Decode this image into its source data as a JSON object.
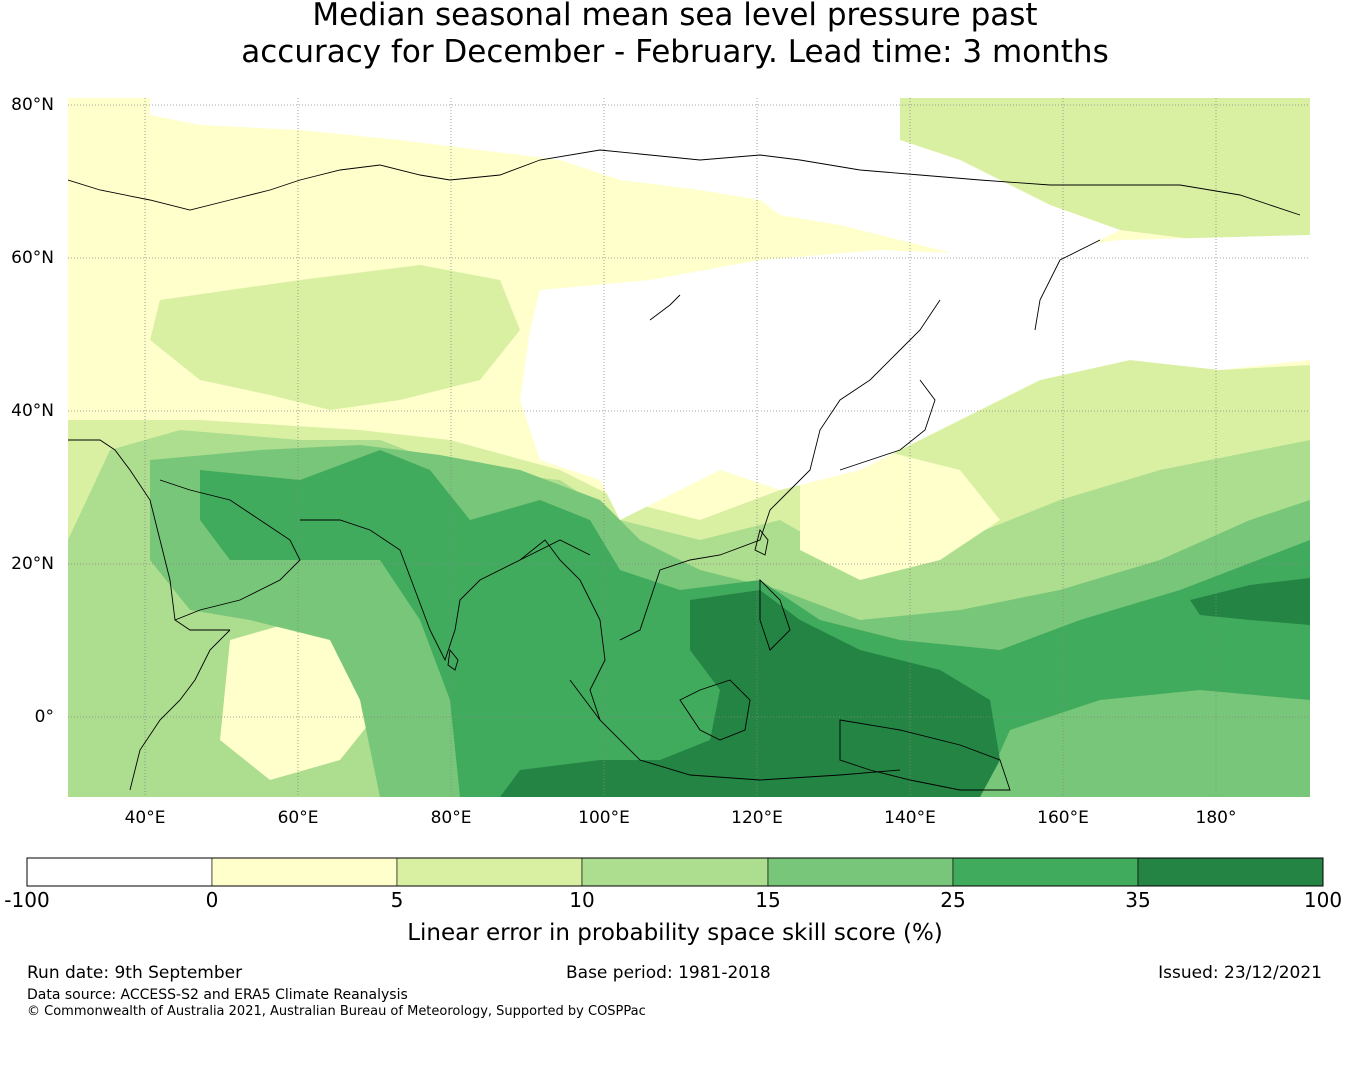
{
  "title": {
    "line1": "Median seasonal mean sea level pressure past",
    "line2": "accuracy for December - February. Lead time: 3 months"
  },
  "map": {
    "lat_labels": [
      "80°N",
      "60°N",
      "40°N",
      "20°N",
      "0°"
    ],
    "lon_labels": [
      "40°E",
      "60°E",
      "80°E",
      "100°E",
      "120°E",
      "140°E",
      "160°E",
      "180°"
    ],
    "region": "Asia, Indian Ocean and Western Pacific"
  },
  "colorbar": {
    "label": "Linear error in probability space skill score (%)",
    "ticks": [
      "-100",
      "0",
      "5",
      "10",
      "15",
      "25",
      "35",
      "100"
    ],
    "colors": [
      "#ffffff",
      "#ffffcc",
      "#d9f0a3",
      "#addd8e",
      "#78c679",
      "#41ab5d",
      "#238443"
    ]
  },
  "footer": {
    "run_date": "Run date: 9th September",
    "base_period": "Base period: 1981-2018",
    "issued": "Issued: 23/12/2021",
    "source": "Data source: ACCESS-S2 and ERA5 Climate Reanalysis",
    "copyright": "© Commonwealth of Australia 2021, Australian Bureau of Meteorology, Supported by COSPPac"
  }
}
